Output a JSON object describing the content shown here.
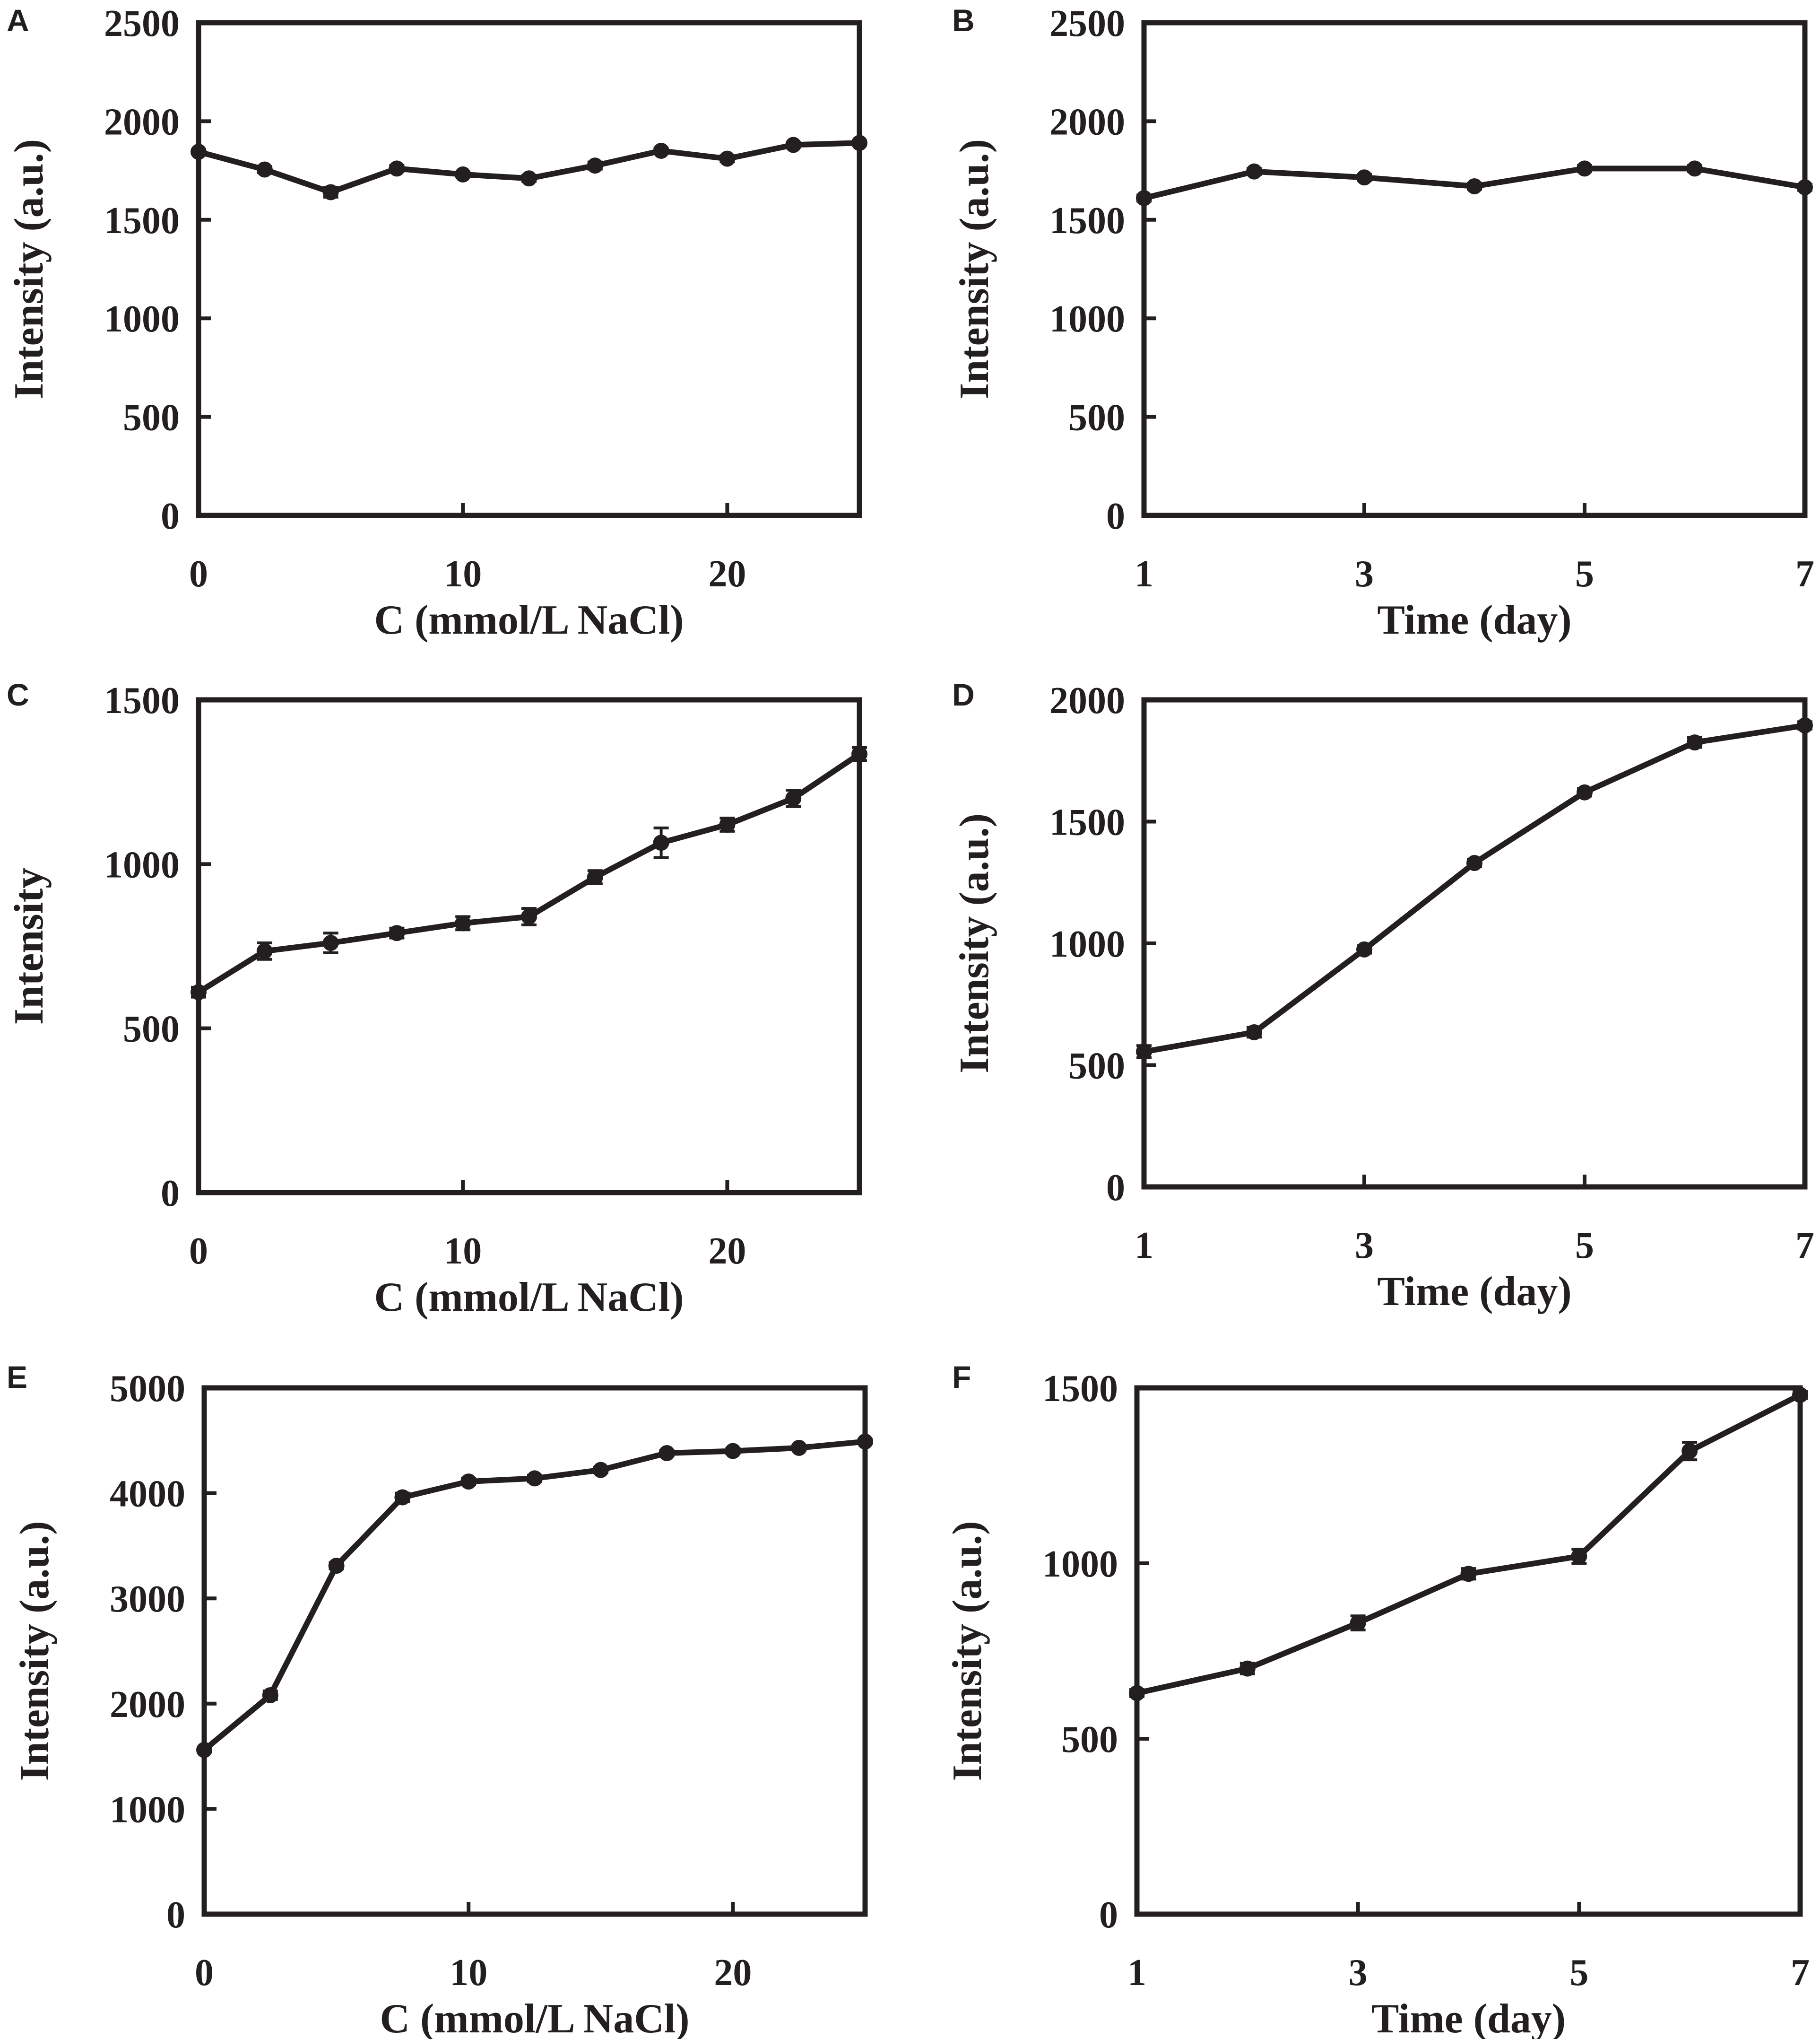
{
  "chart_data": [
    {
      "panel": "A",
      "type": "line",
      "xlabel": "C (mmol/L NaCl)",
      "ylabel": "Intensity (a.u.)",
      "xlim": [
        0,
        25
      ],
      "ylim": [
        0,
        2500
      ],
      "xticks": [
        0,
        10,
        20
      ],
      "xtick_labels": [
        "0",
        "10",
        "20"
      ],
      "yticks": [
        0,
        500,
        1000,
        1500,
        2000,
        2500
      ],
      "ytick_labels": [
        "0",
        "500",
        "1000",
        "1500",
        "2000",
        "2500"
      ],
      "x": [
        0,
        2.5,
        5,
        7.5,
        10,
        12.5,
        15,
        17.5,
        20,
        22.5,
        25
      ],
      "y": [
        1845,
        1755,
        1640,
        1760,
        1730,
        1710,
        1775,
        1850,
        1810,
        1880,
        1890
      ],
      "err": [
        10,
        15,
        25,
        15,
        12,
        15,
        18,
        12,
        15,
        12,
        10
      ]
    },
    {
      "panel": "B",
      "type": "line",
      "xlabel": "Time (day)",
      "ylabel": "Intensity (a.u.)",
      "xlim": [
        1,
        7
      ],
      "ylim": [
        0,
        2500
      ],
      "xticks": [
        1,
        3,
        5,
        7
      ],
      "xtick_labels": [
        "1",
        "3",
        "5",
        "7"
      ],
      "yticks": [
        0,
        500,
        1000,
        1500,
        2000,
        2500
      ],
      "ytick_labels": [
        "0",
        "500",
        "1000",
        "1500",
        "2000",
        "2500"
      ],
      "x": [
        1,
        2,
        3,
        4,
        5,
        6,
        7
      ],
      "y": [
        1610,
        1745,
        1715,
        1670,
        1760,
        1760,
        1665
      ],
      "err": [
        15,
        15,
        15,
        15,
        15,
        15,
        15
      ]
    },
    {
      "panel": "C",
      "type": "line",
      "xlabel": "C (mmol/L NaCl)",
      "ylabel": "Intensity",
      "xlim": [
        0,
        25
      ],
      "ylim": [
        0,
        1500
      ],
      "xticks": [
        0,
        10,
        20
      ],
      "xtick_labels": [
        "0",
        "10",
        "20"
      ],
      "yticks": [
        0,
        500,
        1000,
        1500
      ],
      "ytick_labels": [
        "0",
        "500",
        "1000",
        "1500"
      ],
      "x": [
        0,
        2.5,
        5,
        7.5,
        10,
        12.5,
        15,
        17.5,
        20,
        22.5,
        25
      ],
      "y": [
        610,
        735,
        760,
        790,
        820,
        840,
        960,
        1065,
        1120,
        1200,
        1335
      ],
      "err": [
        15,
        25,
        30,
        15,
        20,
        25,
        20,
        45,
        20,
        25,
        20
      ]
    },
    {
      "panel": "D",
      "type": "line",
      "xlabel": "Time (day)",
      "ylabel": "Intensity (a.u.)",
      "xlim": [
        1,
        7
      ],
      "ylim": [
        0,
        2000
      ],
      "xticks": [
        1,
        3,
        5,
        7
      ],
      "xtick_labels": [
        "1",
        "3",
        "5",
        "7"
      ],
      "yticks": [
        0,
        500,
        1000,
        1500,
        2000
      ],
      "ytick_labels": [
        "0",
        "500",
        "1000",
        "1500",
        "2000"
      ],
      "x": [
        1,
        2,
        3,
        4,
        5,
        6,
        7
      ],
      "y": [
        555,
        635,
        975,
        1330,
        1620,
        1825,
        1895
      ],
      "err": [
        25,
        20,
        15,
        15,
        15,
        20,
        15
      ]
    },
    {
      "panel": "E",
      "type": "line",
      "xlabel": "C (mmol/L NaCl)",
      "ylabel": "Intensity (a.u.)",
      "xlim": [
        0,
        25
      ],
      "ylim": [
        0,
        5000
      ],
      "xticks": [
        0,
        10,
        20
      ],
      "xtick_labels": [
        "0",
        "10",
        "20"
      ],
      "yticks": [
        0,
        1000,
        2000,
        3000,
        4000,
        5000
      ],
      "ytick_labels": [
        "0",
        "1000",
        "2000",
        "3000",
        "4000",
        "5000"
      ],
      "x": [
        0,
        2.5,
        5,
        7.5,
        10,
        12.5,
        15,
        17.5,
        20,
        22.5,
        25
      ],
      "y": [
        1560,
        2080,
        3310,
        3960,
        4110,
        4140,
        4220,
        4380,
        4400,
        4430,
        4490
      ],
      "err": [
        20,
        40,
        30,
        40,
        30,
        30,
        25,
        25,
        25,
        20,
        20
      ]
    },
    {
      "panel": "F",
      "type": "line",
      "xlabel": "Time (day)",
      "ylabel": "Intensity (a.u.)",
      "xlim": [
        1,
        7
      ],
      "ylim": [
        0,
        1500
      ],
      "xticks": [
        1,
        3,
        5,
        7
      ],
      "xtick_labels": [
        "1",
        "3",
        "5",
        "7"
      ],
      "yticks": [
        0,
        500,
        1000,
        1500
      ],
      "ytick_labels": [
        "0",
        "500",
        "1000",
        "1500"
      ],
      "x": [
        1,
        2,
        3,
        4,
        5,
        6,
        7
      ],
      "y": [
        630,
        700,
        830,
        970,
        1020,
        1320,
        1480
      ],
      "err": [
        10,
        15,
        20,
        15,
        20,
        25,
        10
      ]
    }
  ]
}
